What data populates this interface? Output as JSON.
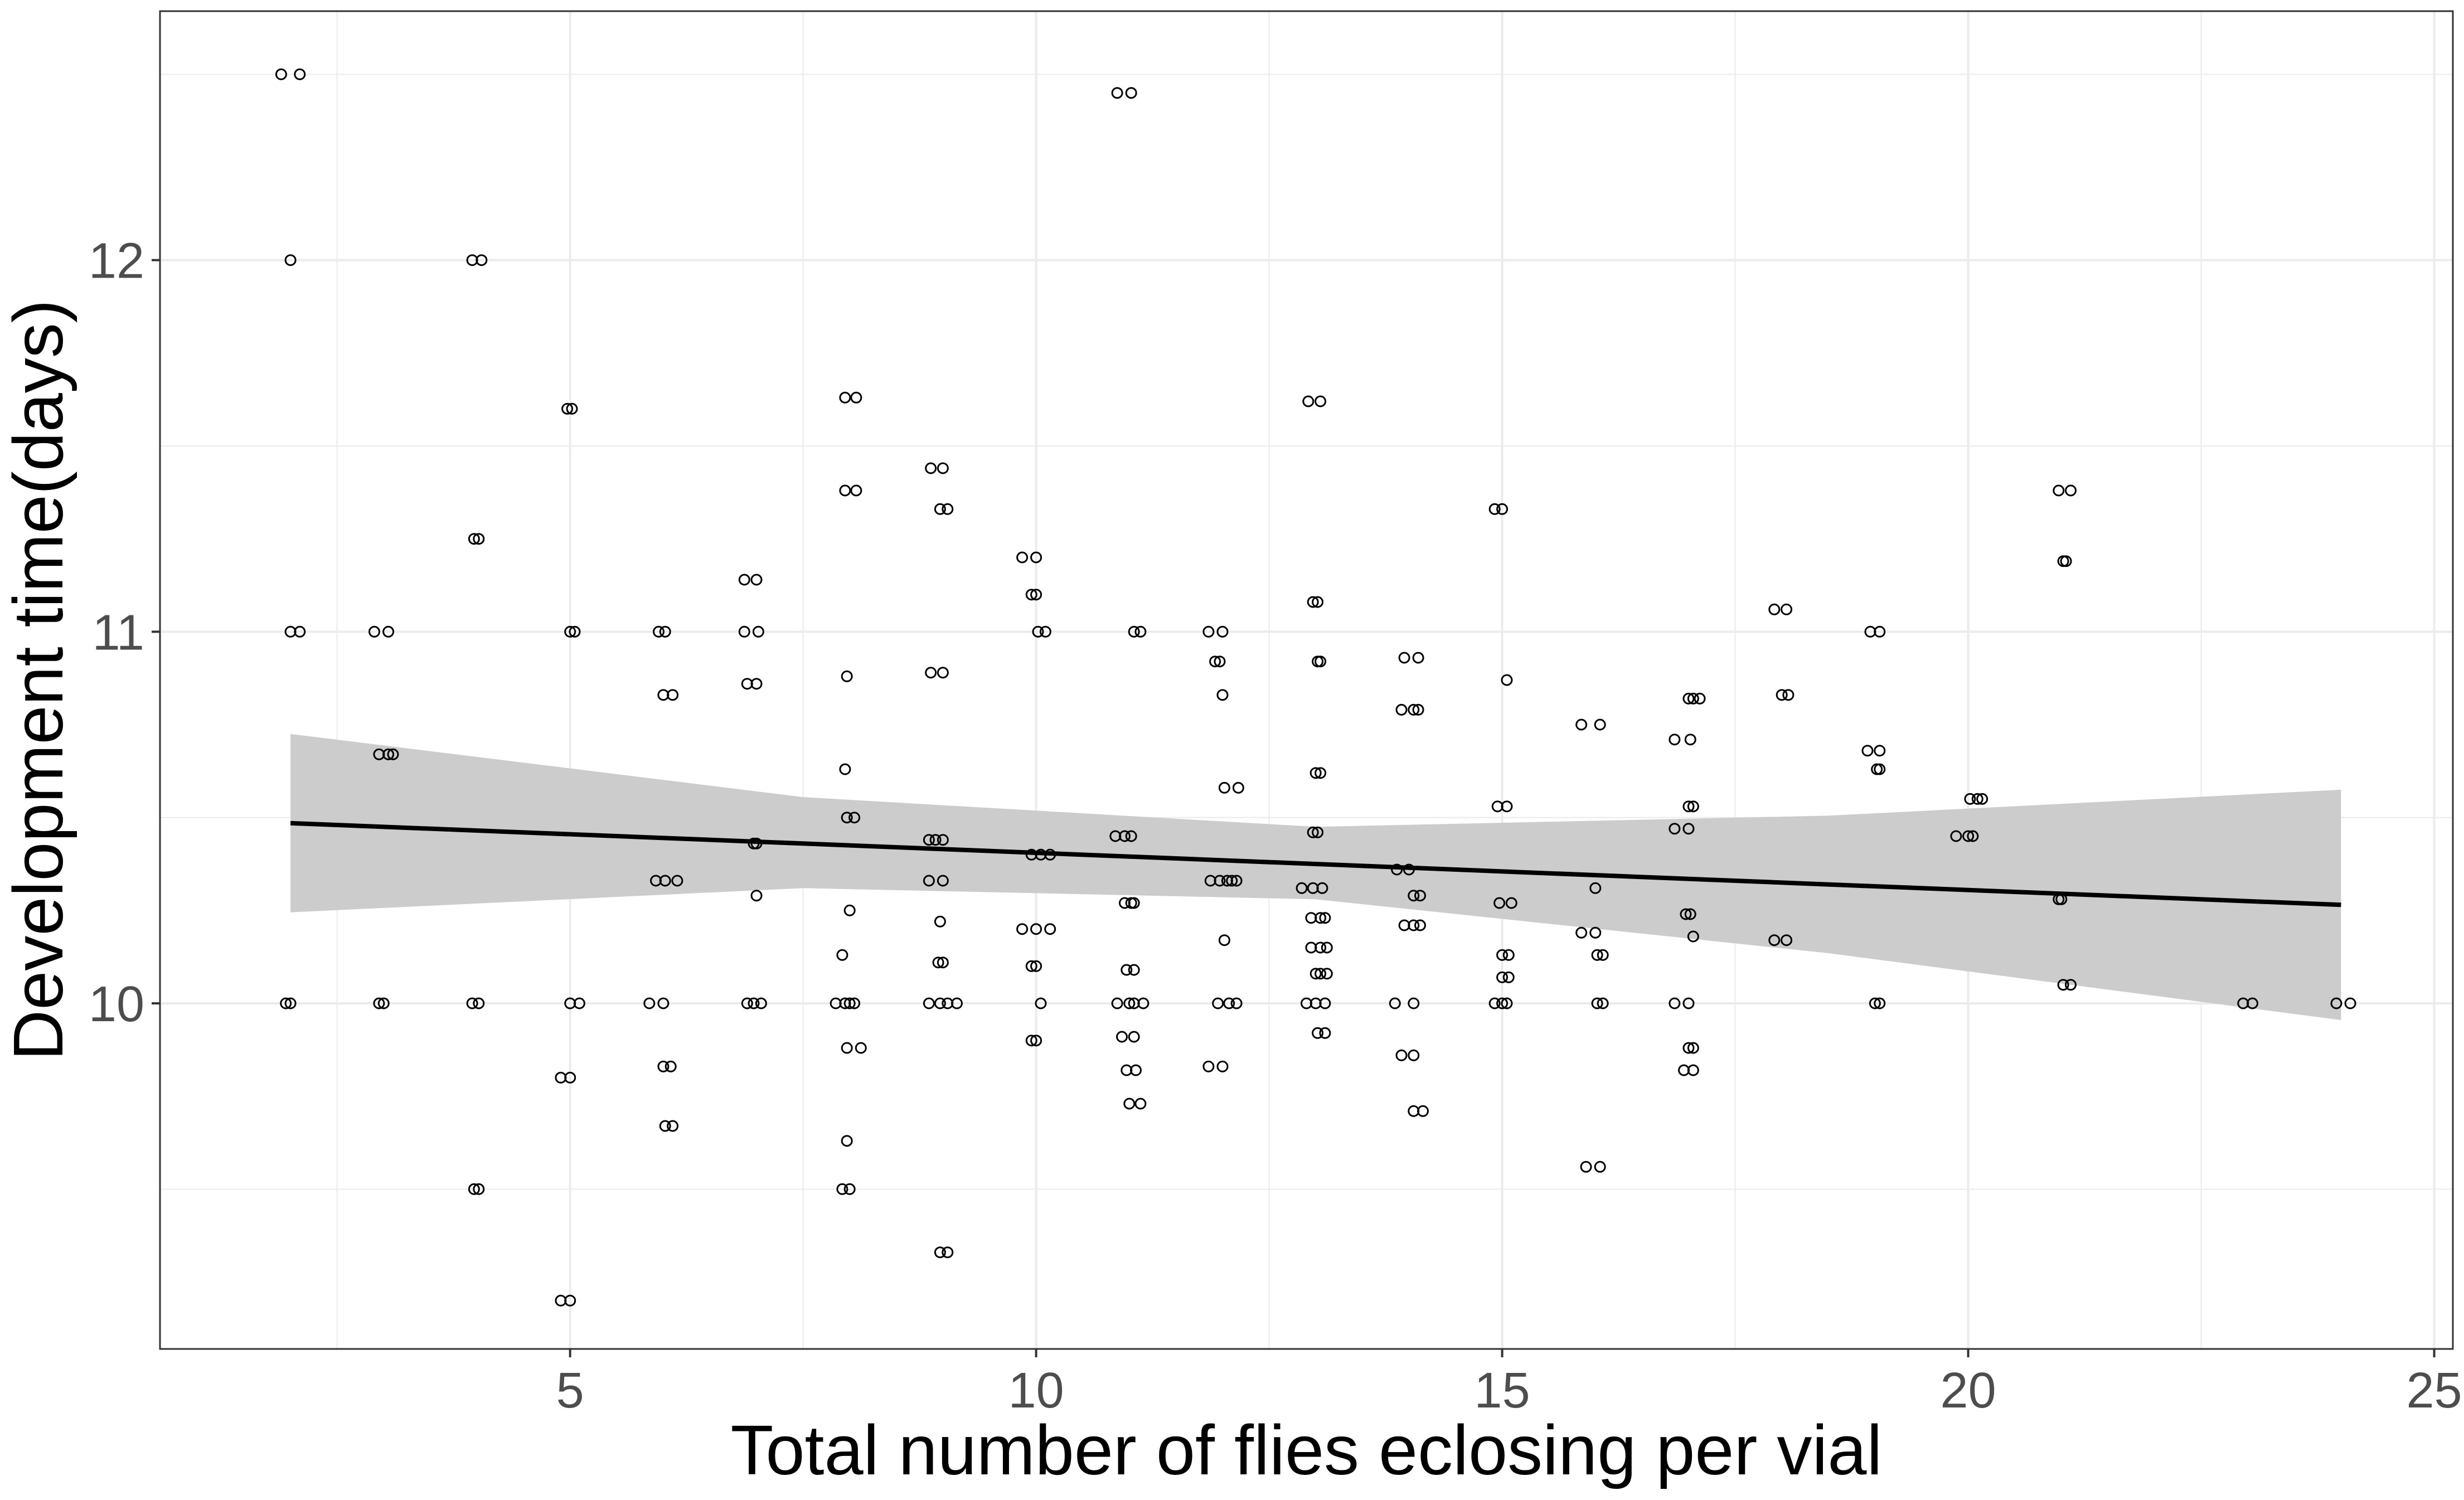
{
  "chart_data": {
    "type": "scatter",
    "title": "",
    "xlabel": "Total number of flies eclosing per vial",
    "ylabel": "Development time(days)",
    "xlim": [
      0.6,
      25.2
    ],
    "ylim": [
      9.07,
      12.67
    ],
    "x_ticks": [
      5,
      10,
      15,
      20,
      25
    ],
    "x_tick_labels": [
      "5",
      "10",
      "15",
      "20",
      "25"
    ],
    "y_ticks": [
      10,
      11,
      12
    ],
    "y_tick_labels": [
      "10",
      "11",
      "12"
    ],
    "grid": true,
    "legend": "none",
    "colors": {
      "points": "#000000",
      "fit_line": "#000000",
      "ribbon": "#cccccc",
      "grid": "#ebebeb",
      "panel_border": "#333333"
    },
    "points": [
      [
        1.9,
        12.5
      ],
      [
        2.1,
        12.5
      ],
      [
        2.0,
        12.0
      ],
      [
        2.0,
        11.0
      ],
      [
        2.1,
        11.0
      ],
      [
        1.95,
        10.0
      ],
      [
        2.0,
        10.0
      ],
      [
        2.9,
        11.0
      ],
      [
        3.05,
        11.0
      ],
      [
        2.95,
        10.67
      ],
      [
        3.05,
        10.67
      ],
      [
        3.1,
        10.67
      ],
      [
        2.95,
        10.0
      ],
      [
        3.0,
        10.0
      ],
      [
        3.95,
        12.0
      ],
      [
        4.05,
        12.0
      ],
      [
        3.97,
        11.25
      ],
      [
        4.02,
        11.25
      ],
      [
        3.95,
        10.0
      ],
      [
        4.02,
        10.0
      ],
      [
        3.97,
        9.5
      ],
      [
        4.02,
        9.5
      ],
      [
        4.97,
        11.6
      ],
      [
        5.02,
        11.6
      ],
      [
        5.0,
        11.0
      ],
      [
        5.05,
        11.0
      ],
      [
        4.9,
        9.8
      ],
      [
        5.0,
        9.8
      ],
      [
        5.0,
        10.0
      ],
      [
        5.1,
        10.0
      ],
      [
        4.9,
        9.2
      ],
      [
        5.0,
        9.2
      ],
      [
        5.85,
        10.0
      ],
      [
        6.0,
        10.0
      ],
      [
        5.95,
        11.0
      ],
      [
        6.02,
        11.0
      ],
      [
        6.0,
        10.83
      ],
      [
        6.1,
        10.83
      ],
      [
        5.92,
        10.33
      ],
      [
        6.02,
        10.33
      ],
      [
        6.15,
        10.33
      ],
      [
        6.0,
        9.83
      ],
      [
        6.08,
        9.83
      ],
      [
        6.02,
        9.67
      ],
      [
        6.1,
        9.67
      ],
      [
        6.87,
        11.14
      ],
      [
        7.0,
        11.14
      ],
      [
        6.87,
        11.0
      ],
      [
        7.02,
        11.0
      ],
      [
        6.9,
        10.86
      ],
      [
        7.0,
        10.86
      ],
      [
        6.97,
        10.43
      ],
      [
        7.0,
        10.43
      ],
      [
        7.0,
        10.29
      ],
      [
        6.9,
        10.0
      ],
      [
        6.97,
        10.0
      ],
      [
        7.05,
        10.0
      ],
      [
        7.95,
        11.63
      ],
      [
        8.07,
        11.63
      ],
      [
        7.95,
        11.38
      ],
      [
        8.07,
        11.38
      ],
      [
        7.97,
        10.88
      ],
      [
        7.95,
        10.63
      ],
      [
        7.97,
        10.5
      ],
      [
        8.05,
        10.5
      ],
      [
        8.0,
        10.25
      ],
      [
        7.92,
        10.13
      ],
      [
        8.0,
        10.0
      ],
      [
        7.85,
        10.0
      ],
      [
        7.95,
        10.0
      ],
      [
        8.05,
        10.0
      ],
      [
        7.97,
        9.88
      ],
      [
        8.12,
        9.88
      ],
      [
        7.97,
        9.63
      ],
      [
        7.92,
        9.5
      ],
      [
        8.0,
        9.5
      ],
      [
        8.87,
        11.44
      ],
      [
        9.0,
        11.44
      ],
      [
        8.97,
        11.33
      ],
      [
        9.05,
        11.33
      ],
      [
        8.87,
        10.89
      ],
      [
        9.0,
        10.89
      ],
      [
        8.85,
        10.44
      ],
      [
        8.92,
        10.44
      ],
      [
        9.0,
        10.44
      ],
      [
        8.85,
        10.33
      ],
      [
        9.0,
        10.33
      ],
      [
        8.97,
        10.22
      ],
      [
        8.95,
        10.11
      ],
      [
        9.0,
        10.11
      ],
      [
        8.85,
        10.0
      ],
      [
        8.97,
        10.0
      ],
      [
        9.05,
        10.0
      ],
      [
        9.15,
        10.0
      ],
      [
        8.97,
        9.33
      ],
      [
        9.05,
        9.33
      ],
      [
        9.85,
        11.2
      ],
      [
        10.0,
        11.2
      ],
      [
        9.95,
        11.1
      ],
      [
        10.0,
        11.1
      ],
      [
        10.02,
        11.0
      ],
      [
        10.1,
        11.0
      ],
      [
        9.95,
        10.4
      ],
      [
        10.05,
        10.4
      ],
      [
        10.15,
        10.4
      ],
      [
        9.85,
        10.2
      ],
      [
        10.0,
        10.2
      ],
      [
        10.15,
        10.2
      ],
      [
        9.95,
        10.1
      ],
      [
        10.0,
        10.1
      ],
      [
        10.05,
        10.0
      ],
      [
        9.95,
        9.9
      ],
      [
        10.0,
        9.9
      ],
      [
        10.87,
        12.45
      ],
      [
        11.02,
        12.45
      ],
      [
        11.05,
        11.0
      ],
      [
        11.12,
        11.0
      ],
      [
        10.85,
        10.45
      ],
      [
        10.95,
        10.45
      ],
      [
        11.02,
        10.45
      ],
      [
        10.95,
        10.27
      ],
      [
        11.02,
        10.27
      ],
      [
        11.05,
        10.27
      ],
      [
        10.97,
        10.09
      ],
      [
        11.05,
        10.09
      ],
      [
        10.87,
        10.0
      ],
      [
        11.0,
        10.0
      ],
      [
        11.05,
        10.0
      ],
      [
        11.15,
        10.0
      ],
      [
        10.92,
        9.91
      ],
      [
        11.05,
        9.91
      ],
      [
        10.97,
        9.82
      ],
      [
        11.07,
        9.82
      ],
      [
        11.0,
        9.73
      ],
      [
        11.12,
        9.73
      ],
      [
        11.85,
        11.0
      ],
      [
        12.0,
        11.0
      ],
      [
        11.92,
        10.92
      ],
      [
        11.97,
        10.92
      ],
      [
        12.0,
        10.83
      ],
      [
        12.02,
        10.58
      ],
      [
        12.17,
        10.58
      ],
      [
        11.87,
        10.33
      ],
      [
        11.97,
        10.33
      ],
      [
        12.05,
        10.33
      ],
      [
        12.1,
        10.33
      ],
      [
        12.15,
        10.33
      ],
      [
        12.02,
        10.17
      ],
      [
        11.95,
        10.0
      ],
      [
        12.07,
        10.0
      ],
      [
        12.15,
        10.0
      ],
      [
        11.85,
        9.83
      ],
      [
        12.0,
        9.83
      ],
      [
        12.92,
        11.62
      ],
      [
        13.05,
        11.62
      ],
      [
        12.97,
        11.08
      ],
      [
        13.02,
        11.08
      ],
      [
        13.02,
        10.92
      ],
      [
        13.05,
        10.92
      ],
      [
        13.0,
        10.62
      ],
      [
        13.05,
        10.62
      ],
      [
        12.97,
        10.46
      ],
      [
        13.02,
        10.46
      ],
      [
        12.85,
        10.31
      ],
      [
        12.97,
        10.31
      ],
      [
        13.07,
        10.31
      ],
      [
        12.95,
        10.23
      ],
      [
        13.05,
        10.23
      ],
      [
        13.1,
        10.23
      ],
      [
        12.95,
        10.15
      ],
      [
        13.05,
        10.15
      ],
      [
        13.12,
        10.15
      ],
      [
        13.0,
        10.08
      ],
      [
        13.05,
        10.08
      ],
      [
        13.12,
        10.08
      ],
      [
        12.9,
        10.0
      ],
      [
        13.0,
        10.0
      ],
      [
        13.1,
        10.0
      ],
      [
        13.02,
        9.92
      ],
      [
        13.1,
        9.92
      ],
      [
        13.95,
        10.93
      ],
      [
        14.1,
        10.93
      ],
      [
        13.92,
        10.79
      ],
      [
        14.05,
        10.79
      ],
      [
        14.1,
        10.79
      ],
      [
        13.87,
        10.36
      ],
      [
        14.0,
        10.36
      ],
      [
        14.05,
        10.29
      ],
      [
        14.12,
        10.29
      ],
      [
        13.95,
        10.21
      ],
      [
        14.05,
        10.21
      ],
      [
        14.12,
        10.21
      ],
      [
        13.85,
        10.0
      ],
      [
        14.05,
        10.0
      ],
      [
        13.92,
        9.86
      ],
      [
        14.05,
        9.86
      ],
      [
        14.05,
        9.71
      ],
      [
        14.15,
        9.71
      ],
      [
        14.92,
        11.33
      ],
      [
        15.0,
        11.33
      ],
      [
        15.05,
        10.87
      ],
      [
        14.95,
        10.53
      ],
      [
        15.05,
        10.53
      ],
      [
        14.97,
        10.27
      ],
      [
        15.1,
        10.27
      ],
      [
        15.0,
        10.13
      ],
      [
        15.07,
        10.13
      ],
      [
        15.0,
        10.07
      ],
      [
        15.07,
        10.07
      ],
      [
        14.92,
        10.0
      ],
      [
        15.0,
        10.0
      ],
      [
        15.05,
        10.0
      ],
      [
        15.85,
        10.75
      ],
      [
        16.05,
        10.75
      ],
      [
        16.0,
        10.31
      ],
      [
        15.85,
        10.19
      ],
      [
        16.0,
        10.19
      ],
      [
        16.02,
        10.13
      ],
      [
        16.08,
        10.13
      ],
      [
        16.02,
        10.0
      ],
      [
        16.08,
        10.0
      ],
      [
        15.9,
        9.56
      ],
      [
        16.05,
        9.56
      ],
      [
        16.85,
        10.71
      ],
      [
        17.02,
        10.71
      ],
      [
        17.0,
        10.82
      ],
      [
        17.05,
        10.82
      ],
      [
        17.12,
        10.82
      ],
      [
        17.0,
        10.53
      ],
      [
        17.05,
        10.53
      ],
      [
        16.85,
        10.47
      ],
      [
        17.0,
        10.47
      ],
      [
        16.97,
        10.24
      ],
      [
        17.02,
        10.24
      ],
      [
        17.05,
        10.18
      ],
      [
        16.85,
        10.0
      ],
      [
        17.0,
        10.0
      ],
      [
        17.0,
        9.88
      ],
      [
        17.05,
        9.88
      ],
      [
        16.95,
        9.82
      ],
      [
        17.05,
        9.82
      ],
      [
        17.92,
        11.06
      ],
      [
        18.05,
        11.06
      ],
      [
        18.0,
        10.83
      ],
      [
        18.07,
        10.83
      ],
      [
        17.92,
        10.17
      ],
      [
        18.05,
        10.17
      ],
      [
        18.95,
        11.0
      ],
      [
        19.05,
        11.0
      ],
      [
        18.92,
        10.68
      ],
      [
        19.05,
        10.68
      ],
      [
        19.02,
        10.63
      ],
      [
        19.05,
        10.63
      ],
      [
        19.0,
        10.0
      ],
      [
        19.05,
        10.0
      ],
      [
        19.87,
        10.45
      ],
      [
        20.0,
        10.45
      ],
      [
        20.05,
        10.45
      ],
      [
        20.02,
        10.55
      ],
      [
        20.1,
        10.55
      ],
      [
        20.15,
        10.55
      ],
      [
        20.97,
        11.38
      ],
      [
        21.1,
        11.38
      ],
      [
        21.02,
        11.19
      ],
      [
        21.05,
        11.19
      ],
      [
        20.97,
        10.28
      ],
      [
        21.0,
        10.28
      ],
      [
        21.02,
        10.05
      ],
      [
        21.1,
        10.05
      ],
      [
        22.95,
        10.0
      ],
      [
        23.05,
        10.0
      ],
      [
        23.95,
        10.0
      ],
      [
        24.1,
        10.0
      ]
    ],
    "fit": {
      "x": [
        2.0,
        7.5,
        13.0,
        18.5,
        24.0
      ],
      "y": [
        10.485,
        10.43,
        10.375,
        10.32,
        10.265
      ],
      "lower": [
        10.245,
        10.31,
        10.28,
        10.135,
        9.955
      ],
      "upper": [
        10.725,
        10.555,
        10.475,
        10.505,
        10.575
      ]
    }
  }
}
